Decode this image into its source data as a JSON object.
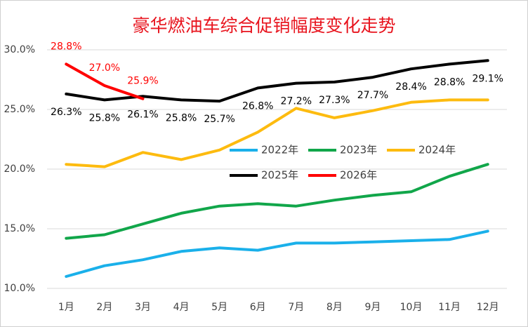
{
  "chart_data": {
    "type": "line",
    "title": "豪华燃油车综合促销幅度变化走势",
    "categories": [
      "1月",
      "2月",
      "3月",
      "4月",
      "5月",
      "6月",
      "7月",
      "8月",
      "9月",
      "10月",
      "11月",
      "12月"
    ],
    "ylim": [
      10,
      30
    ],
    "yticks": [
      {
        "value": 10,
        "label": "10.0%"
      },
      {
        "value": 15,
        "label": "15.0%"
      },
      {
        "value": 20,
        "label": "20.0%"
      },
      {
        "value": 25,
        "label": "25.0%"
      },
      {
        "value": 30,
        "label": "30.0%"
      }
    ],
    "grid": true,
    "legend": "center",
    "series": [
      {
        "name": "2022年",
        "color": "#1ab0ea",
        "values": [
          11.0,
          11.9,
          12.4,
          13.1,
          13.4,
          13.2,
          13.8,
          13.8,
          13.9,
          14.0,
          14.1,
          14.8
        ]
      },
      {
        "name": "2023年",
        "color": "#11a64a",
        "values": [
          14.2,
          14.5,
          15.4,
          16.3,
          16.9,
          17.1,
          16.9,
          17.4,
          17.8,
          18.1,
          19.4,
          20.4
        ]
      },
      {
        "name": "2024年",
        "color": "#fdbb0f",
        "values": [
          20.4,
          20.2,
          21.4,
          20.8,
          21.6,
          23.1,
          25.1,
          24.3,
          24.9,
          25.6,
          25.8,
          25.8
        ]
      },
      {
        "name": "2025年",
        "color": "#000000",
        "values": [
          26.3,
          25.8,
          26.1,
          25.8,
          25.7,
          26.8,
          27.2,
          27.3,
          27.7,
          28.4,
          28.8,
          29.1
        ],
        "value_labels": [
          "26.3%",
          "25.8%",
          "26.1%",
          "25.8%",
          "25.7%",
          "26.8%",
          "27.2%",
          "27.3%",
          "27.7%",
          "28.4%",
          "28.8%",
          "29.1%"
        ]
      },
      {
        "name": "2026年",
        "color": "#ff0000",
        "values": [
          28.8,
          27.0,
          25.9,
          null,
          null,
          null,
          null,
          null,
          null,
          null,
          null,
          null
        ],
        "value_labels": [
          "28.8%",
          "27.0%",
          "25.9%",
          null,
          null,
          null,
          null,
          null,
          null,
          null,
          null,
          null
        ]
      }
    ]
  }
}
